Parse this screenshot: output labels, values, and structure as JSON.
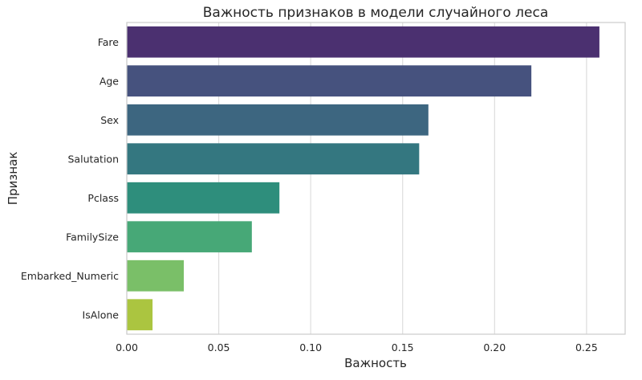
{
  "chart_data": {
    "type": "bar",
    "orientation": "horizontal",
    "title": "Важность признаков в модели случайного леса",
    "xlabel": "Важность",
    "ylabel": "Признак",
    "categories": [
      "Fare",
      "Age",
      "Sex",
      "Salutation",
      "Pclass",
      "FamilySize",
      "Embarked_Numeric",
      "IsAlone"
    ],
    "values": [
      0.257,
      0.22,
      0.164,
      0.159,
      0.083,
      0.068,
      0.031,
      0.014
    ],
    "colors": [
      "#4b3070",
      "#46527e",
      "#3d6680",
      "#347780",
      "#2e8e7c",
      "#47a877",
      "#7abf68",
      "#abc540"
    ],
    "xlim": [
      0,
      0.271
    ],
    "xticks": [
      0,
      0.05,
      0.1,
      0.15,
      0.2,
      0.25
    ],
    "xtick_labels": [
      "0.00",
      "0.05",
      "0.10",
      "0.15",
      "0.20",
      "0.25"
    ],
    "grid": "vertical"
  }
}
